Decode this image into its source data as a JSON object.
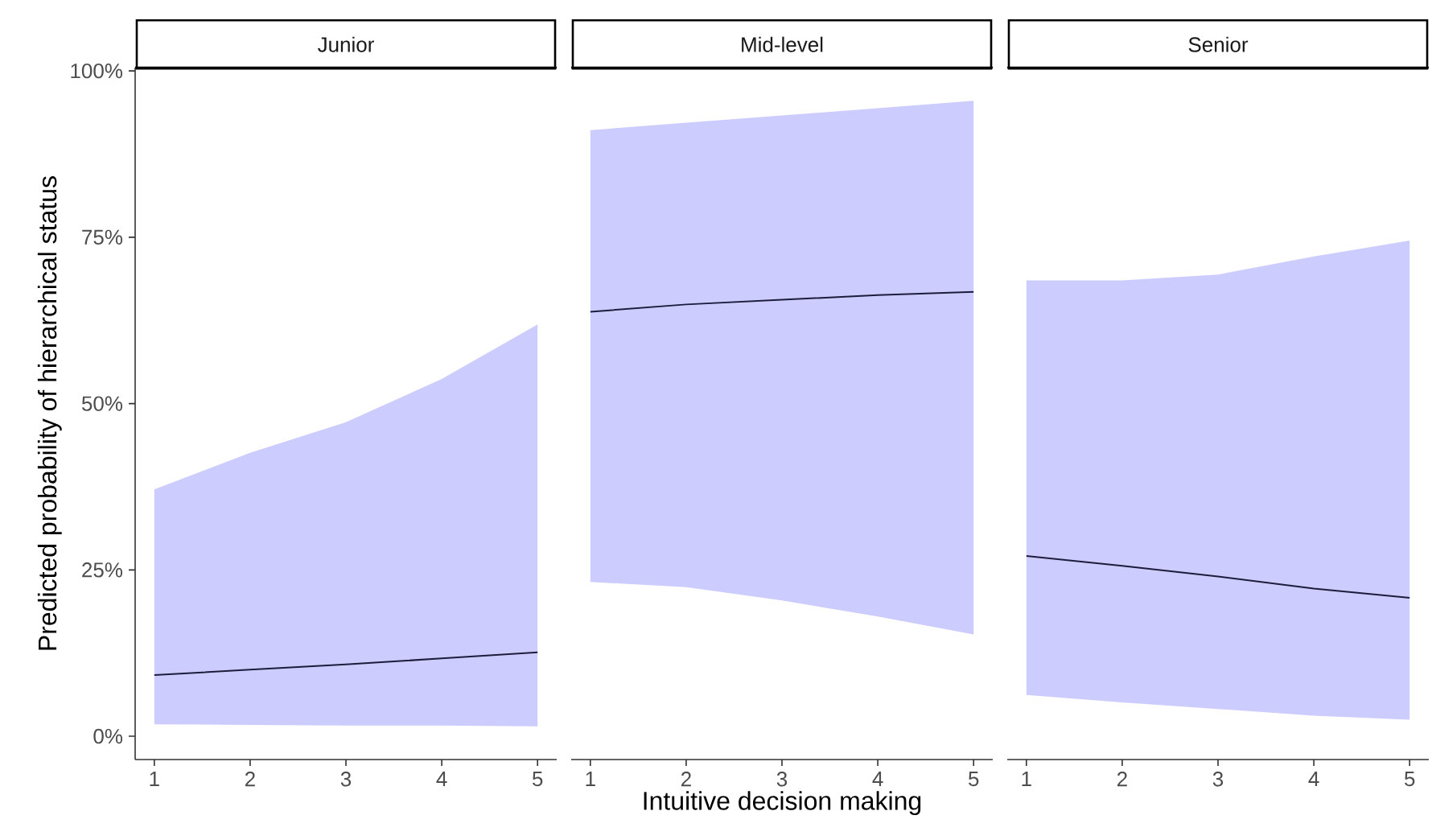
{
  "chart_data": [
    {
      "type": "line",
      "title": "Junior",
      "ylabel": "Predicted probability of hierarchical status",
      "x": [
        1,
        2,
        3,
        4,
        5
      ],
      "series": [
        {
          "color": "#1c1c3c",
          "values": [
            9.2,
            10.0,
            10.8,
            11.7,
            12.6
          ],
          "lower": [
            1.8,
            1.7,
            1.6,
            1.6,
            1.5
          ],
          "upper": [
            37.1,
            42.6,
            47.2,
            53.7,
            61.9
          ]
        }
      ],
      "xlim": [
        0.8,
        5.2
      ],
      "ylim": [
        -3.5,
        100.5
      ],
      "xticks": [
        1,
        2,
        3,
        4,
        5
      ],
      "yticks": [
        {
          "value": 0,
          "label": "0%"
        },
        {
          "value": 25,
          "label": "25%"
        },
        {
          "value": 50,
          "label": "50%"
        },
        {
          "value": 75,
          "label": "75%"
        },
        {
          "value": 100,
          "label": "100%"
        }
      ]
    },
    {
      "type": "line",
      "title": "Mid-level",
      "xlabel": "Intuitive decision making",
      "x": [
        1,
        2,
        3,
        4,
        5
      ],
      "series": [
        {
          "color": "#1c1c3c",
          "values": [
            63.8,
            64.9,
            65.6,
            66.3,
            66.8
          ],
          "lower": [
            23.2,
            22.4,
            20.4,
            18.0,
            15.3
          ],
          "upper": [
            91.1,
            92.2,
            93.3,
            94.4,
            95.5
          ]
        }
      ],
      "xlim": [
        0.8,
        5.2
      ],
      "ylim": [
        -3.5,
        100.5
      ],
      "xticks": [
        1,
        2,
        3,
        4,
        5
      ],
      "tick_labels": "x"
    },
    {
      "type": "line",
      "title": "Senior",
      "x": [
        1,
        2,
        3,
        4,
        5
      ],
      "series": [
        {
          "color": "#1c1c3c",
          "values": [
            27.1,
            25.6,
            24.0,
            22.2,
            20.8
          ],
          "lower": [
            6.2,
            5.1,
            4.1,
            3.1,
            2.5
          ],
          "upper": [
            68.5,
            68.5,
            69.4,
            72.1,
            74.5
          ]
        }
      ],
      "xlim": [
        0.8,
        5.2
      ],
      "ylim": [
        -3.5,
        100.5
      ],
      "xticks": [
        1,
        2,
        3,
        4,
        5
      ],
      "tick_labels": "x"
    }
  ]
}
